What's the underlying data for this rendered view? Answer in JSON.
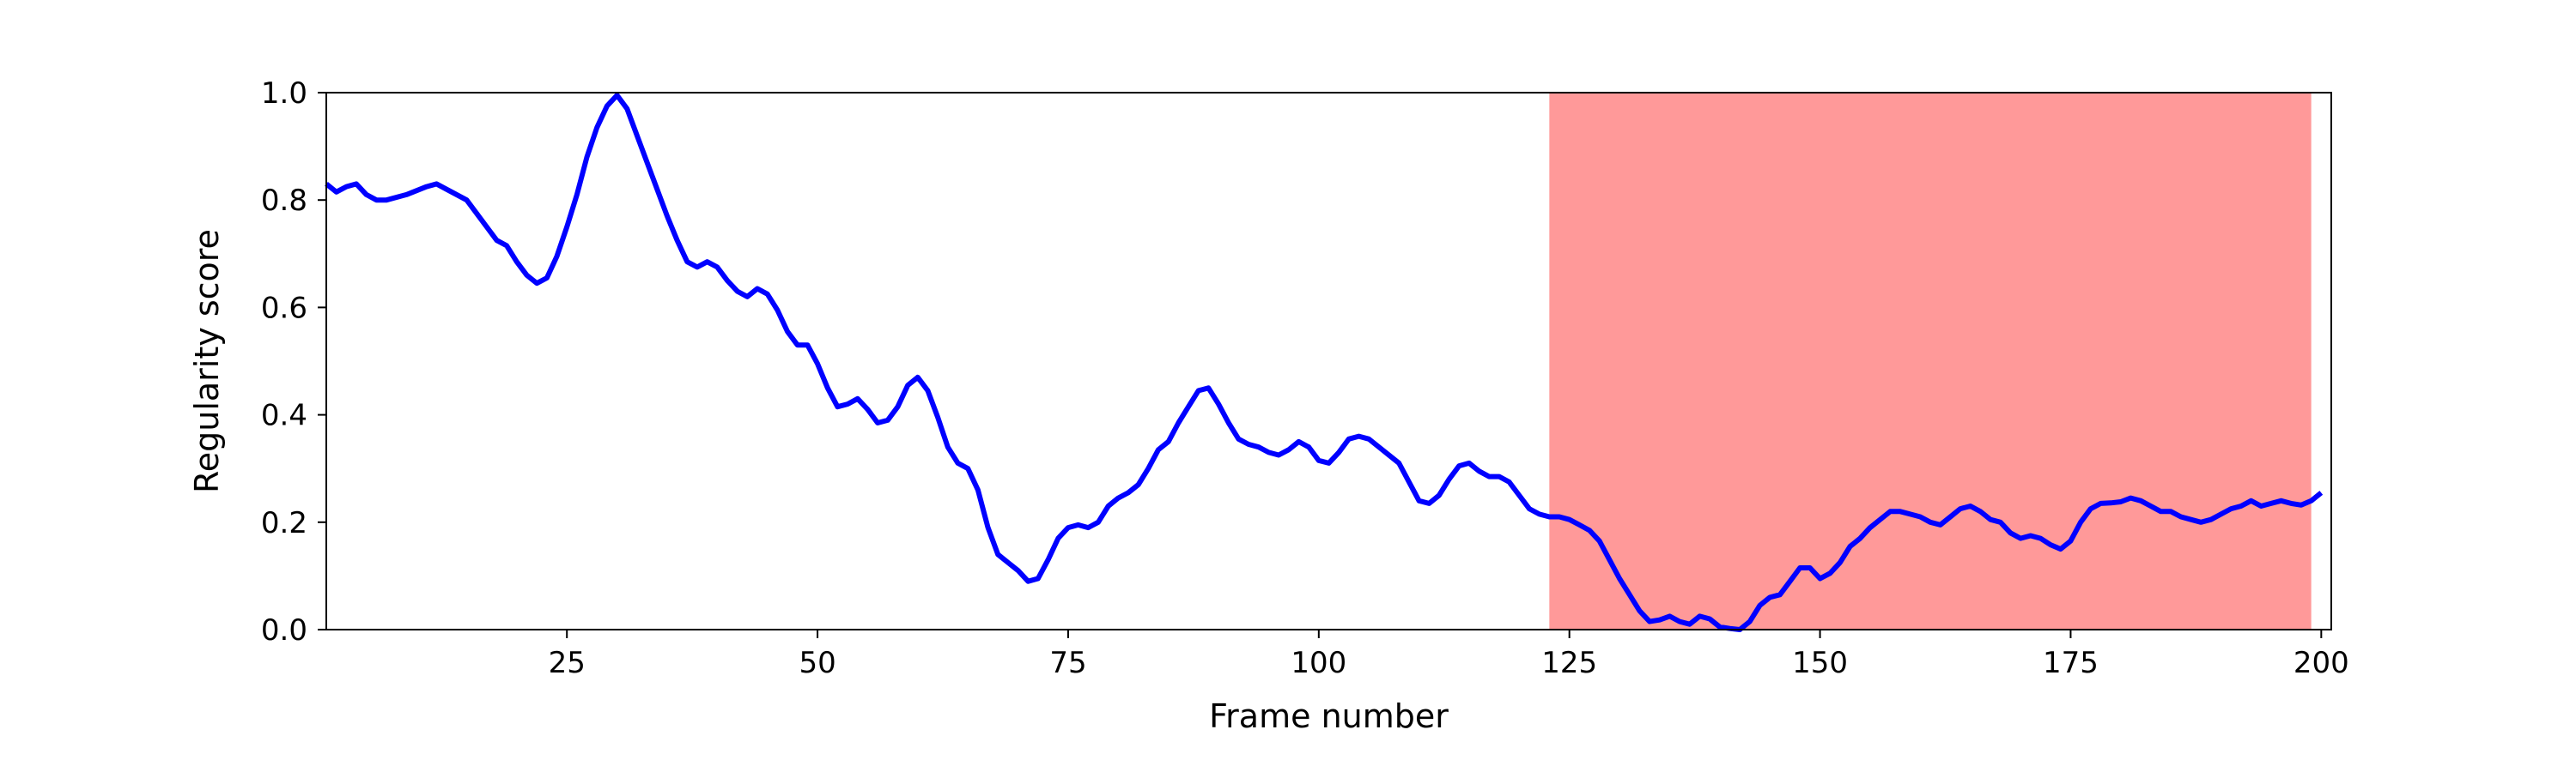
{
  "chart_data": {
    "type": "line",
    "title": "",
    "xlabel": "Frame number",
    "ylabel": "Regularity score",
    "xlim": [
      1,
      201
    ],
    "ylim": [
      0,
      1
    ],
    "grid": false,
    "x_ticks": [
      25,
      50,
      75,
      100,
      125,
      150,
      175,
      200
    ],
    "x_tick_labels": [
      "25",
      "50",
      "75",
      "100",
      "125",
      "150",
      "175",
      "200"
    ],
    "y_ticks": [
      0.0,
      0.2,
      0.4,
      0.6,
      0.8,
      1.0
    ],
    "y_tick_labels": [
      "0.0",
      "0.2",
      "0.4",
      "0.6",
      "0.8",
      "1.0"
    ],
    "highlight_regions": [
      {
        "x_start": 123,
        "x_end": 199,
        "color": "#ff9999"
      }
    ],
    "series": [
      {
        "color": "#0000ff",
        "points": [
          [
            1,
            0.83
          ],
          [
            2,
            0.815
          ],
          [
            3,
            0.825
          ],
          [
            4,
            0.83
          ],
          [
            5,
            0.81
          ],
          [
            6,
            0.8
          ],
          [
            7,
            0.8
          ],
          [
            9,
            0.81
          ],
          [
            11,
            0.825
          ],
          [
            12,
            0.83
          ],
          [
            13,
            0.82
          ],
          [
            15,
            0.8
          ],
          [
            17,
            0.75
          ],
          [
            18,
            0.725
          ],
          [
            19,
            0.715
          ],
          [
            20,
            0.685
          ],
          [
            21,
            0.66
          ],
          [
            22,
            0.645
          ],
          [
            23,
            0.655
          ],
          [
            24,
            0.695
          ],
          [
            25,
            0.75
          ],
          [
            26,
            0.81
          ],
          [
            27,
            0.88
          ],
          [
            28,
            0.935
          ],
          [
            29,
            0.975
          ],
          [
            30,
            0.995
          ],
          [
            31,
            0.97
          ],
          [
            32,
            0.92
          ],
          [
            33,
            0.87
          ],
          [
            34,
            0.82
          ],
          [
            35,
            0.77
          ],
          [
            36,
            0.725
          ],
          [
            37,
            0.685
          ],
          [
            38,
            0.675
          ],
          [
            39,
            0.685
          ],
          [
            40,
            0.675
          ],
          [
            41,
            0.65
          ],
          [
            42,
            0.63
          ],
          [
            43,
            0.62
          ],
          [
            44,
            0.635
          ],
          [
            45,
            0.625
          ],
          [
            46,
            0.595
          ],
          [
            47,
            0.555
          ],
          [
            48,
            0.53
          ],
          [
            49,
            0.53
          ],
          [
            50,
            0.495
          ],
          [
            51,
            0.45
          ],
          [
            52,
            0.415
          ],
          [
            53,
            0.42
          ],
          [
            54,
            0.43
          ],
          [
            55,
            0.41
          ],
          [
            56,
            0.385
          ],
          [
            57,
            0.39
          ],
          [
            58,
            0.415
          ],
          [
            59,
            0.455
          ],
          [
            60,
            0.47
          ],
          [
            61,
            0.445
          ],
          [
            62,
            0.395
          ],
          [
            63,
            0.34
          ],
          [
            64,
            0.31
          ],
          [
            65,
            0.3
          ],
          [
            66,
            0.26
          ],
          [
            67,
            0.19
          ],
          [
            68,
            0.14
          ],
          [
            69,
            0.125
          ],
          [
            70,
            0.11
          ],
          [
            71,
            0.09
          ],
          [
            72,
            0.095
          ],
          [
            73,
            0.13
          ],
          [
            74,
            0.17
          ],
          [
            75,
            0.19
          ],
          [
            76,
            0.195
          ],
          [
            77,
            0.19
          ],
          [
            78,
            0.2
          ],
          [
            79,
            0.23
          ],
          [
            80,
            0.245
          ],
          [
            81,
            0.255
          ],
          [
            82,
            0.27
          ],
          [
            83,
            0.3
          ],
          [
            84,
            0.335
          ],
          [
            85,
            0.35
          ],
          [
            86,
            0.385
          ],
          [
            87,
            0.415
          ],
          [
            88,
            0.445
          ],
          [
            89,
            0.45
          ],
          [
            90,
            0.42
          ],
          [
            91,
            0.385
          ],
          [
            92,
            0.355
          ],
          [
            93,
            0.345
          ],
          [
            94,
            0.34
          ],
          [
            95,
            0.33
          ],
          [
            96,
            0.325
          ],
          [
            97,
            0.335
          ],
          [
            98,
            0.35
          ],
          [
            99,
            0.34
          ],
          [
            100,
            0.315
          ],
          [
            101,
            0.31
          ],
          [
            102,
            0.33
          ],
          [
            103,
            0.355
          ],
          [
            104,
            0.36
          ],
          [
            105,
            0.355
          ],
          [
            106,
            0.34
          ],
          [
            107,
            0.325
          ],
          [
            108,
            0.31
          ],
          [
            109,
            0.275
          ],
          [
            110,
            0.24
          ],
          [
            111,
            0.235
          ],
          [
            112,
            0.25
          ],
          [
            113,
            0.28
          ],
          [
            114,
            0.305
          ],
          [
            115,
            0.31
          ],
          [
            116,
            0.295
          ],
          [
            117,
            0.285
          ],
          [
            118,
            0.285
          ],
          [
            119,
            0.275
          ],
          [
            120,
            0.25
          ],
          [
            121,
            0.225
          ],
          [
            122,
            0.215
          ],
          [
            123,
            0.21
          ],
          [
            124,
            0.21
          ],
          [
            125,
            0.205
          ],
          [
            126,
            0.195
          ],
          [
            127,
            0.185
          ],
          [
            128,
            0.165
          ],
          [
            129,
            0.13
          ],
          [
            130,
            0.095
          ],
          [
            131,
            0.065
          ],
          [
            132,
            0.035
          ],
          [
            133,
            0.015
          ],
          [
            134,
            0.018
          ],
          [
            135,
            0.025
          ],
          [
            136,
            0.015
          ],
          [
            137,
            0.01
          ],
          [
            138,
            0.025
          ],
          [
            139,
            0.02
          ],
          [
            140,
            0.005
          ],
          [
            141,
            0.002
          ],
          [
            142,
            0.0
          ],
          [
            143,
            0.015
          ],
          [
            144,
            0.045
          ],
          [
            145,
            0.06
          ],
          [
            146,
            0.065
          ],
          [
            147,
            0.09
          ],
          [
            148,
            0.115
          ],
          [
            149,
            0.115
          ],
          [
            150,
            0.095
          ],
          [
            151,
            0.105
          ],
          [
            152,
            0.125
          ],
          [
            153,
            0.155
          ],
          [
            154,
            0.17
          ],
          [
            155,
            0.19
          ],
          [
            156,
            0.205
          ],
          [
            157,
            0.22
          ],
          [
            158,
            0.22
          ],
          [
            159,
            0.215
          ],
          [
            160,
            0.21
          ],
          [
            161,
            0.2
          ],
          [
            162,
            0.195
          ],
          [
            163,
            0.21
          ],
          [
            164,
            0.225
          ],
          [
            165,
            0.23
          ],
          [
            166,
            0.22
          ],
          [
            167,
            0.205
          ],
          [
            168,
            0.2
          ],
          [
            169,
            0.18
          ],
          [
            170,
            0.17
          ],
          [
            171,
            0.175
          ],
          [
            172,
            0.17
          ],
          [
            173,
            0.158
          ],
          [
            174,
            0.15
          ],
          [
            175,
            0.165
          ],
          [
            176,
            0.2
          ],
          [
            177,
            0.225
          ],
          [
            178,
            0.235
          ],
          [
            179,
            0.236
          ],
          [
            180,
            0.238
          ],
          [
            181,
            0.245
          ],
          [
            182,
            0.24
          ],
          [
            183,
            0.23
          ],
          [
            184,
            0.22
          ],
          [
            185,
            0.22
          ],
          [
            186,
            0.21
          ],
          [
            187,
            0.205
          ],
          [
            188,
            0.2
          ],
          [
            189,
            0.205
          ],
          [
            190,
            0.215
          ],
          [
            191,
            0.225
          ],
          [
            192,
            0.23
          ],
          [
            193,
            0.24
          ],
          [
            194,
            0.23
          ],
          [
            195,
            0.235
          ],
          [
            196,
            0.24
          ],
          [
            197,
            0.235
          ],
          [
            198,
            0.232
          ],
          [
            199,
            0.24
          ],
          [
            200,
            0.255
          ]
        ]
      }
    ]
  }
}
